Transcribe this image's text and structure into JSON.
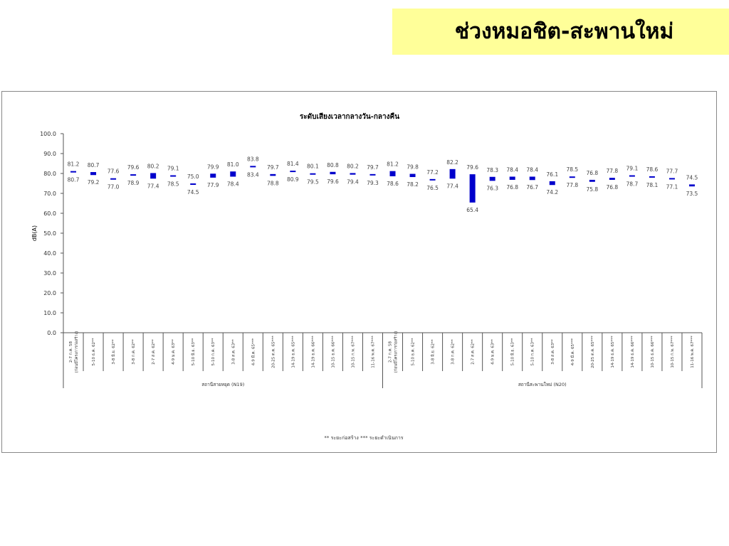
{
  "header": {
    "title": "ช่วงหมอชิต-สะพานใหม่",
    "banner_color": "#ffff99"
  },
  "chart_data": {
    "type": "bar",
    "subtype": "floating range (low-high)",
    "title": "ระดับเสียงเวลากลางวัน-กลางคืน",
    "ylabel": "dB(A)",
    "xlabel": "",
    "ylim": [
      0,
      100
    ],
    "yticks": [
      "0.0",
      "10.0",
      "20.0",
      "30.0",
      "40.0",
      "50.0",
      "60.0",
      "70.0",
      "80.0",
      "90.0",
      "100.0"
    ],
    "grid": false,
    "bar_color": "#0000cc",
    "groups": [
      {
        "name": "สถานีสายหยุด (N19)",
        "categories": [
          "2-7 ก.ค. 58 (ก่อนมีโครงการก่อสร้าง)",
          "5-10 ธ.ค. 62**",
          "3-8 มิ.ย. 62**",
          "3-8 ก.ค. 62**",
          "2-7 ส.ค. 62**",
          "4-9 ม.ค. 63**",
          "5-10 มิ.ย. 63**",
          "5-10 ก.ค. 63**",
          "3-8 ส.ค. 63**",
          "4-9 มี.ค. 65***",
          "20-25 ต.ค. 65***",
          "14-19 ธ.ค. 65***",
          "14-19 ธ.ค. 66***",
          "10-15 ธ.ค. 66***",
          "10-15 ก.พ. 67***",
          "11-16 พ.ค. 67***"
        ],
        "high": [
          81.2,
          80.7,
          77.6,
          79.6,
          80.2,
          79.1,
          75.0,
          79.9,
          81.0,
          83.8,
          79.7,
          81.4,
          80.1,
          80.8,
          80.2,
          79.7
        ],
        "low": [
          80.7,
          79.2,
          77.0,
          78.9,
          77.4,
          78.5,
          74.5,
          77.9,
          78.4,
          83.4,
          78.8,
          80.9,
          79.5,
          79.6,
          79.4,
          79.3
        ]
      },
      {
        "name": "สถานีสะพานใหม่ (N20)",
        "categories": [
          "2-7 ก.ค. 58 (ก่อนมีโครงการก่อสร้าง)",
          "5-10 ธ.ค. 62**",
          "3-8 มิ.ย. 62**",
          "3-8 ก.ค. 62**",
          "2-7 ส.ค. 62**",
          "4-9 ม.ค. 63**",
          "5-10 มิ.ย. 63**",
          "5-10 ก.ค. 63**",
          "3-8 ส.ค. 63**",
          "4-9 มี.ค. 65***",
          "20-25 ต.ค. 65***",
          "14-19 ธ.ค. 65***",
          "14-19 ธ.ค. 66***",
          "10-15 ธ.ค. 66***",
          "10-15 ก.พ. 67***",
          "11-16 พ.ค. 67***"
        ],
        "high": [
          81.2,
          79.8,
          77.2,
          82.2,
          79.6,
          78.3,
          78.4,
          78.4,
          76.1,
          78.5,
          76.8,
          77.8,
          79.1,
          78.6,
          77.7,
          74.5
        ],
        "low": [
          78.6,
          78.2,
          76.5,
          77.4,
          65.4,
          76.3,
          76.8,
          76.7,
          74.2,
          77.8,
          75.8,
          76.8,
          78.7,
          78.1,
          77.1,
          73.5
        ]
      }
    ],
    "footnote": "** ระยะก่อสร้าง    *** ระยะดำเนินการ"
  }
}
